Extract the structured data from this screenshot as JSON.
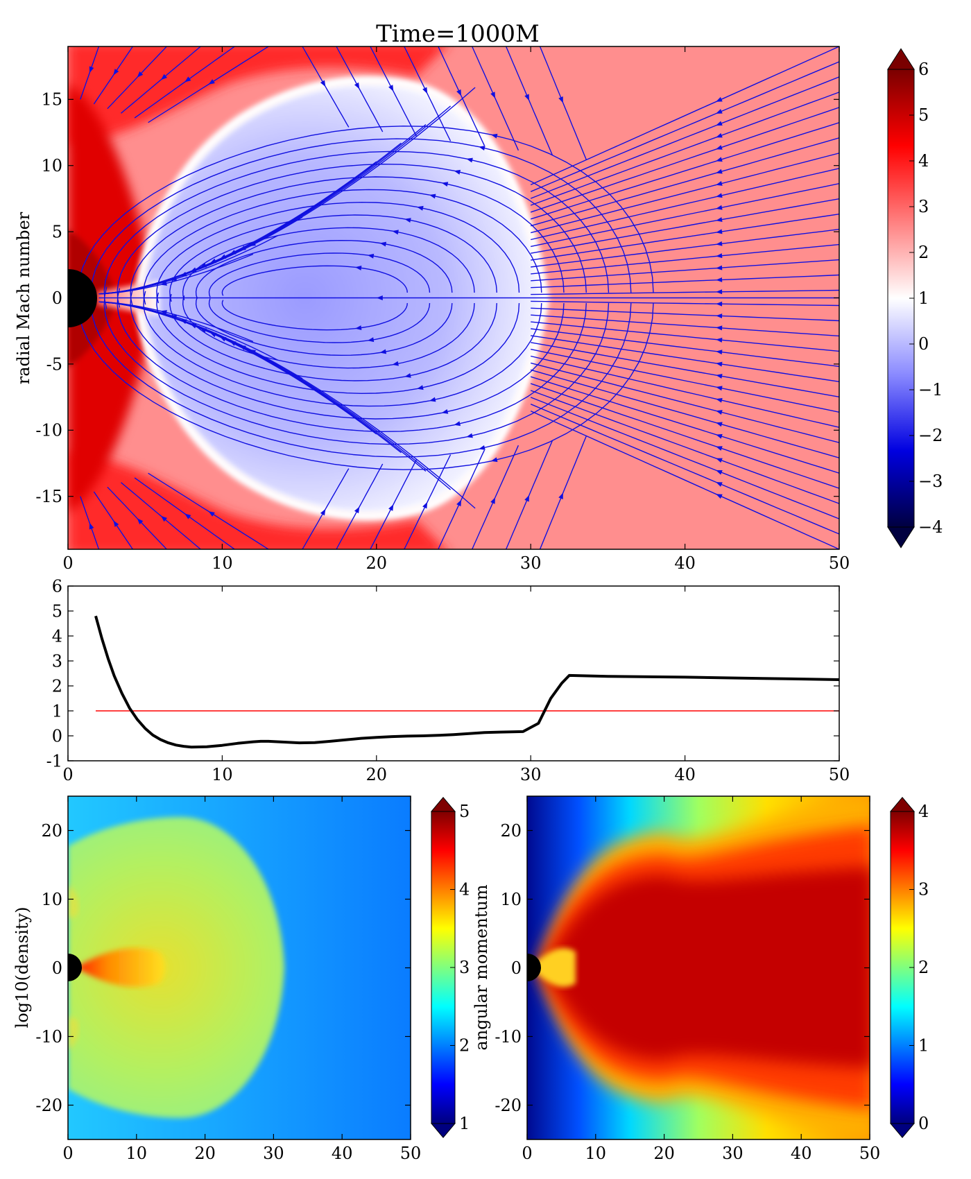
{
  "title": "Time=1000M",
  "colors": {
    "blue_red": [
      "#000040",
      "#0000e0",
      "#8a8aff",
      "#ffffff",
      "#ff8080",
      "#ff0000",
      "#7a0000"
    ],
    "jet": [
      "#00007f",
      "#0000ff",
      "#007fff",
      "#00ffff",
      "#7fff7f",
      "#ffff00",
      "#ff7f00",
      "#ff0000",
      "#7f0000"
    ],
    "streamline": "#1010e0",
    "profile_line": "#000000",
    "reference_line": "#ff0000",
    "black_hole": "#000000"
  },
  "chart_data": [
    {
      "type": "heatmap",
      "title": "Time=1000M",
      "ylabel": "radial Mach number",
      "xlim": [
        0,
        50
      ],
      "ylim": [
        -19,
        19
      ],
      "xticks": [
        "0",
        "10",
        "20",
        "30",
        "40",
        "50"
      ],
      "xtick_values": [
        0,
        10,
        20,
        30,
        40,
        50
      ],
      "yticks": [
        "15",
        "10",
        "5",
        "0",
        "-5",
        "-10",
        "-15"
      ],
      "ytick_values": [
        15,
        10,
        5,
        0,
        -5,
        -10,
        -15
      ],
      "colorbar": {
        "range": [
          -4,
          6
        ],
        "ticks": [
          "6",
          "5",
          "4",
          "3",
          "2",
          "1",
          "0",
          "−1",
          "−2",
          "−3",
          "−4"
        ],
        "tick_values": [
          6,
          5,
          4,
          3,
          2,
          1,
          0,
          -1,
          -2,
          -3,
          -4
        ],
        "extend": "both"
      },
      "overlay": "streamlines",
      "black_hole_radius": 2
    },
    {
      "type": "line",
      "xlim": [
        0,
        50
      ],
      "ylim": [
        -1,
        6
      ],
      "xticks": [
        "0",
        "10",
        "20",
        "30",
        "40",
        "50"
      ],
      "xtick_values": [
        0,
        10,
        20,
        30,
        40,
        50
      ],
      "yticks": [
        "6",
        "5",
        "4",
        "3",
        "2",
        "1",
        "0",
        "-1"
      ],
      "ytick_values": [
        6,
        5,
        4,
        3,
        2,
        1,
        0,
        -1
      ],
      "series": [
        {
          "x": [
            1.8,
            2.2,
            2.6,
            3.0,
            3.5,
            4.0,
            4.5,
            5.0,
            5.5,
            6.0,
            6.5,
            7.0,
            7.5,
            8.0,
            9.0,
            10.0,
            11.0,
            12.0,
            12.5,
            13.0,
            14.0,
            15.0,
            16.0,
            17.0,
            18.0,
            19.0,
            20.0,
            21.0,
            22.0,
            23.0,
            24.0,
            25.0,
            26.0,
            27.0,
            28.0,
            29.5,
            30.5,
            31.3,
            32.0,
            32.5,
            35.0,
            40.0,
            45.0,
            50.0
          ],
          "y": [
            4.8,
            3.9,
            3.1,
            2.4,
            1.7,
            1.1,
            0.65,
            0.3,
            0.03,
            -0.15,
            -0.28,
            -0.37,
            -0.42,
            -0.45,
            -0.44,
            -0.38,
            -0.3,
            -0.24,
            -0.22,
            -0.22,
            -0.25,
            -0.28,
            -0.27,
            -0.22,
            -0.16,
            -0.1,
            -0.06,
            -0.03,
            -0.01,
            0.0,
            0.02,
            0.05,
            0.09,
            0.13,
            0.15,
            0.17,
            0.5,
            1.5,
            2.1,
            2.42,
            2.38,
            2.35,
            2.3,
            2.25
          ]
        },
        {
          "x": [
            1.8,
            50
          ],
          "y": [
            1,
            1
          ]
        }
      ]
    },
    {
      "type": "heatmap",
      "ylabel": "log10(density)",
      "xlim": [
        0,
        50
      ],
      "ylim": [
        -25,
        25
      ],
      "xticks": [
        "0",
        "10",
        "20",
        "30",
        "40",
        "50"
      ],
      "xtick_values": [
        0,
        10,
        20,
        30,
        40,
        50
      ],
      "yticks": [
        "20",
        "10",
        "0",
        "-10",
        "-20"
      ],
      "ytick_values": [
        20,
        10,
        0,
        -10,
        -20
      ],
      "colorbar": {
        "range": [
          1,
          5
        ],
        "ticks": [
          "5",
          "4",
          "3",
          "2",
          "1"
        ],
        "tick_values": [
          5,
          4,
          3,
          2,
          1
        ],
        "extend": "both"
      },
      "black_hole_radius": 2
    },
    {
      "type": "heatmap",
      "ylabel": "angular momentum",
      "xlim": [
        0,
        50
      ],
      "ylim": [
        -25,
        25
      ],
      "xticks": [
        "0",
        "10",
        "20",
        "30",
        "40",
        "50"
      ],
      "xtick_values": [
        0,
        10,
        20,
        30,
        40,
        50
      ],
      "yticks": [
        "20",
        "10",
        "0",
        "-10",
        "-20"
      ],
      "ytick_values": [
        20,
        10,
        0,
        -10,
        -20
      ],
      "colorbar": {
        "range": [
          0,
          4
        ],
        "ticks": [
          "4",
          "3",
          "2",
          "1",
          "0"
        ],
        "tick_values": [
          4,
          3,
          2,
          1,
          0
        ],
        "extend": "both"
      },
      "black_hole_radius": 2
    }
  ]
}
